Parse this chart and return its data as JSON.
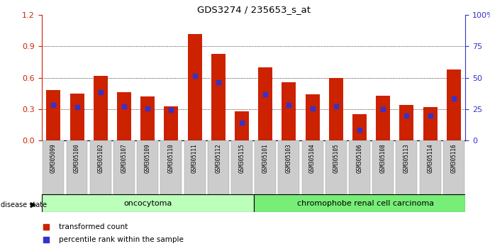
{
  "title": "GDS3274 / 235653_s_at",
  "samples": [
    "GSM305099",
    "GSM305100",
    "GSM305102",
    "GSM305107",
    "GSM305109",
    "GSM305110",
    "GSM305111",
    "GSM305112",
    "GSM305115",
    "GSM305101",
    "GSM305103",
    "GSM305104",
    "GSM305105",
    "GSM305106",
    "GSM305108",
    "GSM305113",
    "GSM305114",
    "GSM305116"
  ],
  "red_values": [
    0.48,
    0.45,
    0.62,
    0.46,
    0.42,
    0.33,
    1.02,
    0.83,
    0.28,
    0.7,
    0.56,
    0.44,
    0.6,
    0.25,
    0.43,
    0.34,
    0.32,
    0.68
  ],
  "blue_values": [
    0.34,
    0.32,
    0.46,
    0.33,
    0.31,
    0.29,
    0.62,
    0.56,
    0.17,
    0.44,
    0.34,
    0.31,
    0.33,
    0.1,
    0.3,
    0.24,
    0.24,
    0.4
  ],
  "bar_color": "#cc2200",
  "blue_color": "#3333cc",
  "oncocytoma_label": "oncocytoma",
  "carcinoma_label": "chromophobe renal cell carcinoma",
  "oncocytoma_count": 9,
  "disease_label": "disease state",
  "legend_red": "transformed count",
  "legend_blue": "percentile rank within the sample",
  "ylim": [
    0,
    1.2
  ],
  "yticks_left": [
    0,
    0.3,
    0.6,
    0.9,
    1.2
  ],
  "yticks_right": [
    0,
    25,
    50,
    75,
    100
  ],
  "background_color": "#ffffff",
  "onco_bg": "#bbffbb",
  "carci_bg": "#77ee77",
  "tick_bg": "#cccccc"
}
